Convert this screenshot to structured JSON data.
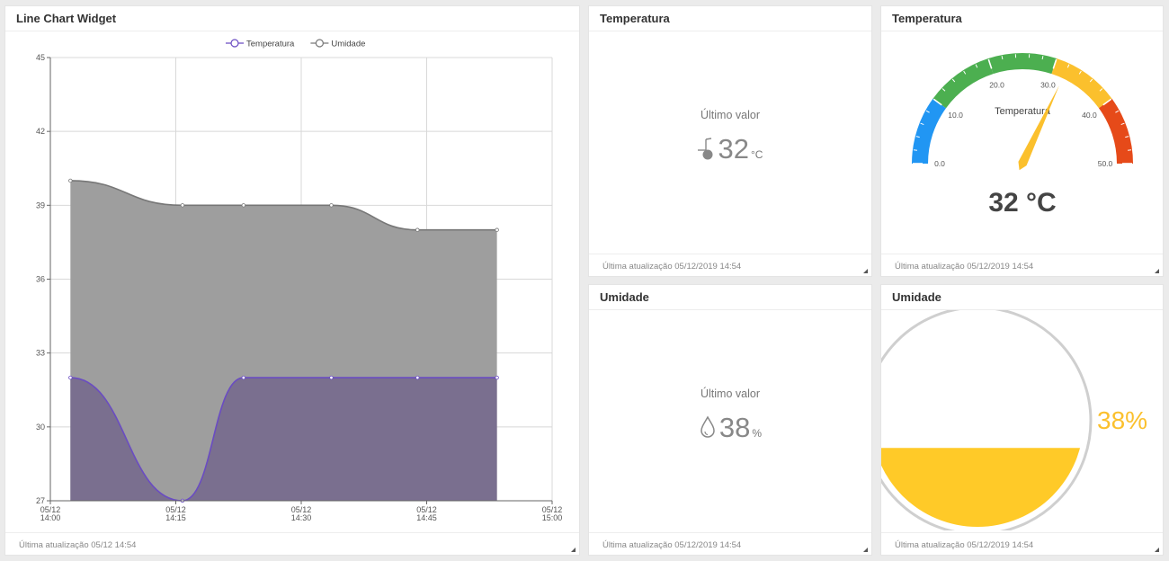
{
  "line_widget": {
    "title": "Line Chart Widget",
    "footer": "Última atualização 05/12 14:54"
  },
  "chart_data": {
    "type": "line",
    "legend_position": "top-center",
    "grid": true,
    "ylim": [
      27,
      45
    ],
    "y_ticks": [
      "27",
      "30",
      "33",
      "36",
      "39",
      "42",
      "45"
    ],
    "x_ticks": [
      {
        "date": "05/12",
        "time": "14:00",
        "t": 0
      },
      {
        "date": "05/12",
        "time": "14:15",
        "t": 15
      },
      {
        "date": "05/12",
        "time": "14:30",
        "t": 30
      },
      {
        "date": "05/12",
        "time": "14:45",
        "t": 45
      },
      {
        "date": "05/12",
        "time": "15:00",
        "t": 60
      }
    ],
    "series": [
      {
        "name": "Umidade",
        "color": "#777777",
        "fill": "#9e9e9e",
        "x": [
          2.4,
          15.8,
          23.1,
          33.6,
          43.9,
          53.4
        ],
        "values": [
          40,
          39,
          39,
          39,
          38,
          38
        ]
      },
      {
        "name": "Temperatura",
        "color": "#6a4cc2",
        "fill": "#7a6f8f",
        "x": [
          2.4,
          15.8,
          23.1,
          33.6,
          43.9,
          53.4
        ],
        "values": [
          32,
          27,
          32,
          32,
          32,
          32
        ]
      }
    ]
  },
  "temp_value_card": {
    "title": "Temperatura",
    "label": "Último valor",
    "value": "32",
    "unit": "°C",
    "icon": "thermometer-icon",
    "footer": "Última atualização 05/12/2019 14:54"
  },
  "temp_gauge": {
    "title": "Temperatura",
    "gauge_label": "Temperatura",
    "min": 0,
    "max": 50,
    "value": 32,
    "value_text": "32 °C",
    "tick_labels": [
      "0.0",
      "10.0",
      "20.0",
      "30.0",
      "40.0",
      "50.0"
    ],
    "bands": [
      {
        "from": 0,
        "to": 10,
        "color": "#2196f3"
      },
      {
        "from": 10,
        "to": 20,
        "color": "#4caf50"
      },
      {
        "from": 20,
        "to": 30,
        "color": "#4caf50"
      },
      {
        "from": 30,
        "to": 40,
        "color": "#fbc02d"
      },
      {
        "from": 40,
        "to": 50,
        "color": "#e64a19"
      }
    ],
    "needle_color": "#fbc02d",
    "footer": "Última atualização 05/12/2019 14:54"
  },
  "humid_value_card": {
    "title": "Umidade",
    "label": "Último valor",
    "value": "38",
    "unit": "%",
    "icon": "droplet-icon",
    "footer": "Última atualização 05/12/2019 14:54"
  },
  "humid_level": {
    "title": "Umidade",
    "level": 0.38,
    "value_text": "38%",
    "fill_color": "#ffca28",
    "footer": "Última atualização 05/12/2019 14:54"
  }
}
